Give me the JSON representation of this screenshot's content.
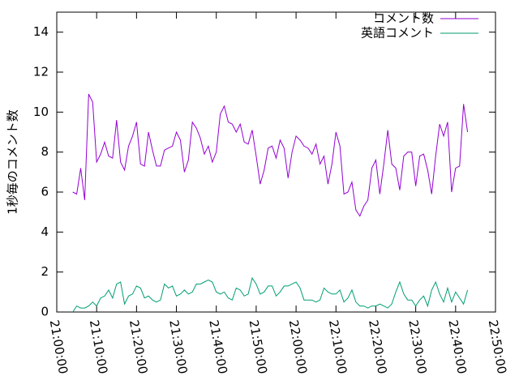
{
  "chart_data": {
    "type": "line",
    "y_label": "1秒毎のコメント数",
    "x": [
      "21:04:00",
      "21:05:00",
      "21:06:00",
      "21:07:00",
      "21:08:00",
      "21:09:00",
      "21:10:00",
      "21:11:00",
      "21:12:00",
      "21:13:00",
      "21:14:00",
      "21:15:00",
      "21:16:00",
      "21:17:00",
      "21:18:00",
      "21:19:00",
      "21:20:00",
      "21:21:00",
      "21:22:00",
      "21:23:00",
      "21:24:00",
      "21:25:00",
      "21:26:00",
      "21:27:00",
      "21:28:00",
      "21:29:00",
      "21:30:00",
      "21:31:00",
      "21:32:00",
      "21:33:00",
      "21:34:00",
      "21:35:00",
      "21:36:00",
      "21:37:00",
      "21:38:00",
      "21:39:00",
      "21:40:00",
      "21:41:00",
      "21:42:00",
      "21:43:00",
      "21:44:00",
      "21:45:00",
      "21:46:00",
      "21:47:00",
      "21:48:00",
      "21:49:00",
      "21:50:00",
      "21:51:00",
      "21:52:00",
      "21:53:00",
      "21:54:00",
      "21:55:00",
      "21:56:00",
      "21:57:00",
      "21:58:00",
      "21:59:00",
      "22:00:00",
      "22:01:00",
      "22:02:00",
      "22:03:00",
      "22:04:00",
      "22:05:00",
      "22:06:00",
      "22:07:00",
      "22:08:00",
      "22:09:00",
      "22:10:00",
      "22:11:00",
      "22:12:00",
      "22:13:00",
      "22:14:00",
      "22:15:00",
      "22:16:00",
      "22:17:00",
      "22:18:00",
      "22:19:00",
      "22:20:00",
      "22:21:00",
      "22:22:00",
      "22:23:00",
      "22:24:00",
      "22:25:00",
      "22:26:00",
      "22:27:00",
      "22:28:00",
      "22:29:00",
      "22:30:00",
      "22:31:00",
      "22:32:00",
      "22:33:00",
      "22:34:00",
      "22:35:00",
      "22:36:00",
      "22:37:00",
      "22:38:00",
      "22:39:00",
      "22:40:00",
      "22:41:00",
      "22:42:00",
      "22:43:00"
    ],
    "series": [
      {
        "name": "コメント数",
        "color": "#9400d3",
        "values": [
          6.0,
          5.9,
          7.2,
          5.6,
          10.9,
          10.5,
          7.5,
          7.9,
          8.5,
          7.8,
          7.7,
          9.6,
          7.5,
          7.1,
          8.3,
          8.8,
          9.5,
          7.4,
          7.3,
          9.0,
          8.1,
          7.3,
          7.3,
          8.1,
          8.2,
          8.3,
          9.0,
          8.6,
          7.0,
          7.6,
          9.5,
          9.2,
          8.7,
          7.9,
          8.3,
          7.5,
          8.0,
          9.9,
          10.3,
          9.5,
          9.4,
          9.0,
          9.4,
          8.5,
          8.4,
          9.1,
          7.8,
          6.4,
          7.1,
          8.2,
          8.3,
          7.7,
          8.6,
          8.2,
          6.7,
          8.0,
          8.8,
          8.6,
          8.3,
          8.2,
          7.9,
          8.4,
          7.4,
          7.8,
          6.4,
          7.4,
          9.0,
          8.3,
          5.9,
          6.0,
          6.5,
          5.1,
          4.8,
          5.3,
          5.6,
          7.2,
          7.6,
          5.9,
          7.4,
          9.1,
          7.4,
          7.2,
          6.1,
          7.8,
          8.0,
          8.0,
          6.3,
          7.8,
          7.9,
          7.1,
          5.9,
          7.8,
          9.4,
          8.8,
          9.5,
          6.0,
          7.2,
          7.3,
          10.4,
          9.0
        ]
      },
      {
        "name": "英語コメント",
        "color": "#009e73",
        "values": [
          0.0,
          0.3,
          0.2,
          0.2,
          0.3,
          0.5,
          0.3,
          0.7,
          0.8,
          1.1,
          0.7,
          1.4,
          1.5,
          0.4,
          0.8,
          0.9,
          1.3,
          1.2,
          0.7,
          0.8,
          0.6,
          0.5,
          0.6,
          1.4,
          1.2,
          1.3,
          0.8,
          0.9,
          1.1,
          0.9,
          1.0,
          1.4,
          1.4,
          1.5,
          1.6,
          1.5,
          1.0,
          0.9,
          1.0,
          0.7,
          0.6,
          1.2,
          1.1,
          0.8,
          0.9,
          1.7,
          1.4,
          0.9,
          1.0,
          1.3,
          1.3,
          0.8,
          1.0,
          1.3,
          1.3,
          1.4,
          1.5,
          1.2,
          0.6,
          0.6,
          0.6,
          0.5,
          0.6,
          1.2,
          1.0,
          0.9,
          0.9,
          1.1,
          0.5,
          0.7,
          1.1,
          0.5,
          0.3,
          0.3,
          0.2,
          0.3,
          0.3,
          0.4,
          0.3,
          0.2,
          0.4,
          1.0,
          1.5,
          0.9,
          0.6,
          0.6,
          0.3,
          0.6,
          0.8,
          0.3,
          1.1,
          1.5,
          0.9,
          0.5,
          1.2,
          0.5,
          1.0,
          0.7,
          0.4,
          1.1
        ]
      }
    ],
    "xlim": [
      "21:00:00",
      "22:50:00"
    ],
    "xticks": [
      "21:00:00",
      "21:10:00",
      "21:20:00",
      "21:30:00",
      "21:40:00",
      "21:50:00",
      "22:00:00",
      "22:10:00",
      "22:20:00",
      "22:30:00",
      "22:40:00",
      "22:50:00"
    ],
    "ylim": [
      0,
      15
    ],
    "yticks": [
      0,
      2,
      4,
      6,
      8,
      10,
      12,
      14
    ],
    "legend": "top-right"
  }
}
